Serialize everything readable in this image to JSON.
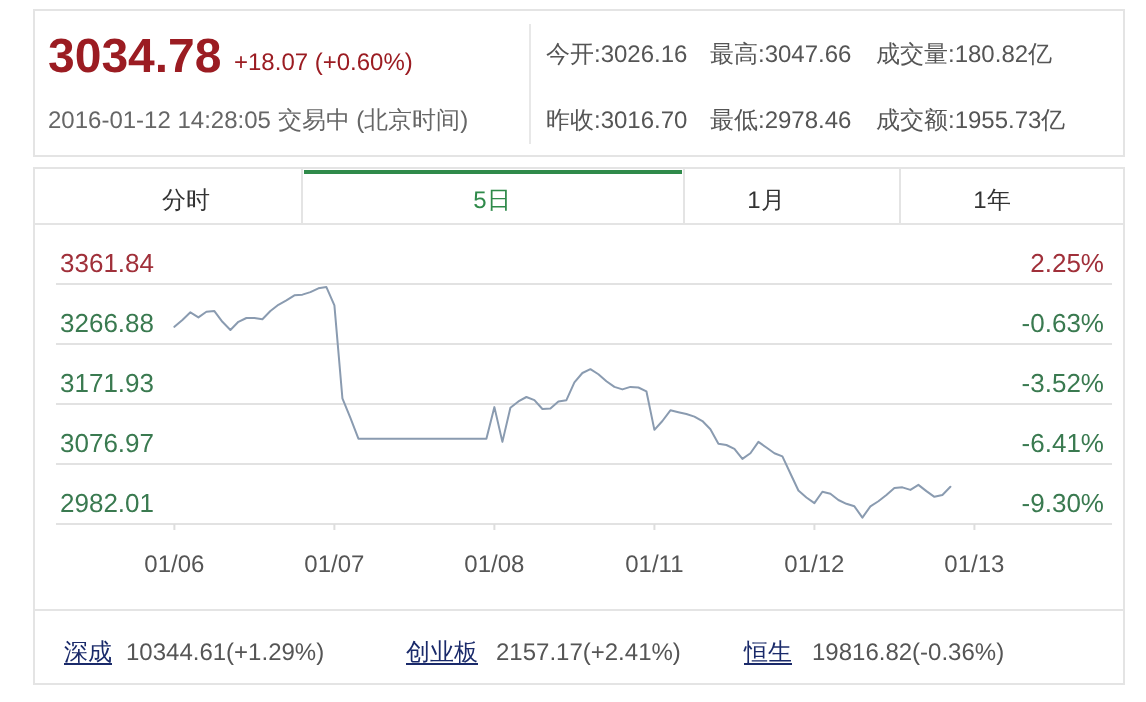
{
  "chart_data": {
    "type": "line",
    "title": "3034.78",
    "subtitle": "+18.07 (+0.60%)",
    "annotations": [
      "2016-01-12 14:28:05 交易中 (北京时间)",
      "今开:3026.16",
      "最高:3047.66",
      "成交量:180.82亿",
      "昨收:3016.70",
      "最低:2978.46",
      "成交额:1955.73亿",
      "分时",
      "5日",
      "1月",
      "1年",
      "深成",
      "10344.61(+1.29%)",
      "创业板",
      "2157.17(+2.41%)",
      "恒生",
      "19816.82(-0.36%)"
    ],
    "categories": [
      "01/06",
      null,
      null,
      null,
      null,
      null,
      null,
      null,
      null,
      null,
      null,
      null,
      null,
      null,
      null,
      null,
      null,
      null,
      null,
      null,
      "01/07",
      null,
      null,
      null,
      null,
      null,
      null,
      null,
      null,
      null,
      null,
      null,
      null,
      null,
      null,
      null,
      null,
      null,
      null,
      null,
      "01/08",
      null,
      null,
      null,
      null,
      null,
      null,
      null,
      null,
      null,
      null,
      null,
      null,
      null,
      null,
      null,
      null,
      null,
      null,
      null,
      "01/11",
      null,
      null,
      null,
      null,
      null,
      null,
      null,
      null,
      null,
      null,
      null,
      null,
      null,
      null,
      null,
      null,
      null,
      null,
      null,
      "01/12",
      null,
      null,
      null,
      null,
      null,
      null,
      null,
      null,
      null,
      null,
      null,
      null,
      null,
      null,
      null,
      null,
      null,
      null,
      null,
      "01/13"
    ],
    "ylim": [
      2982.01,
      3361.84
    ],
    "yticks": [
      3361.84,
      3266.88,
      3171.93,
      3076.97,
      2982.01
    ],
    "y2lim": [
      -9.3,
      2.25
    ],
    "y2ticks": [
      {
        "value": 2.25,
        "label": "2.25%"
      },
      {
        "value": -0.63,
        "label": "-0.63%"
      },
      {
        "value": -3.52,
        "label": "-3.52%"
      },
      {
        "value": -6.41,
        "label": "-6.41%"
      },
      {
        "value": -9.3,
        "label": "-9.30%"
      }
    ],
    "grid": "y",
    "series": [
      {
        "color": "#8a9bb0",
        "values": [
          3294,
          3305,
          3317,
          3309,
          3318,
          3319,
          3302,
          3289,
          3302,
          3308,
          3308,
          3306,
          3319,
          3329,
          3336,
          3344,
          3345,
          3349,
          3355,
          3357,
          3328,
          3181,
          3150,
          3117,
          3117,
          3117,
          3117,
          3117,
          3117,
          3117,
          3117,
          3117,
          3117,
          3117,
          3117,
          3117,
          3117,
          3117,
          3117,
          3117,
          3167,
          3112,
          3166,
          3176,
          3183,
          3178,
          3164,
          3165,
          3176,
          3178,
          3206,
          3221,
          3227,
          3219,
          3208,
          3199,
          3195,
          3199,
          3198,
          3192,
          3131,
          3145,
          3162,
          3159,
          3156,
          3152,
          3145,
          3132,
          3109,
          3107,
          3101,
          3085,
          3094,
          3112,
          3103,
          3094,
          3089,
          3062,
          3035,
          3024,
          3015,
          3033,
          3030,
          3020,
          3014,
          3010,
          2992,
          3010,
          3018,
          3028,
          3039,
          3040,
          3036,
          3044,
          3034,
          3025,
          3028,
          3041,
          null,
          null,
          null
        ]
      }
    ]
  }
}
